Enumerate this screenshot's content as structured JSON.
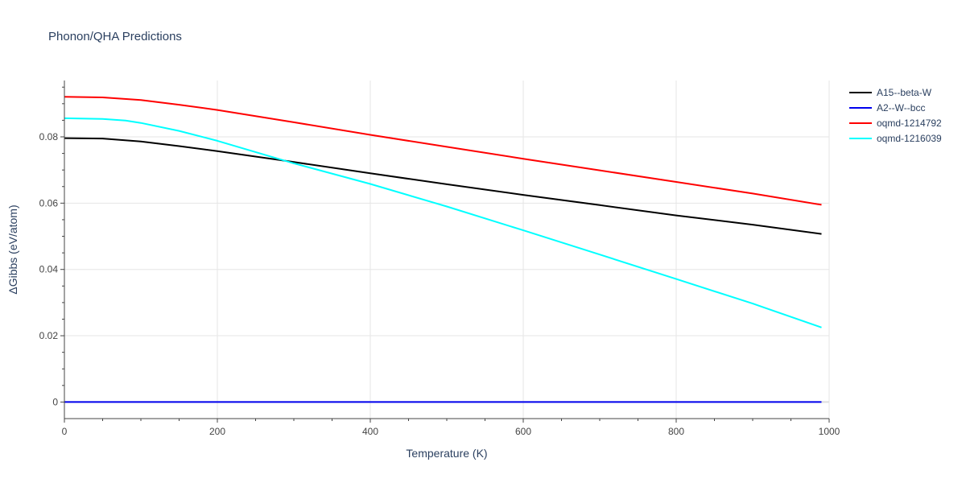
{
  "chart_data": {
    "type": "line",
    "title": "Phonon/QHA Predictions",
    "xlabel": "Temperature (K)",
    "ylabel": "ΔGibbs (eV/atom)",
    "xlim": [
      0,
      1000
    ],
    "ylim": [
      -0.005,
      0.097
    ],
    "xticks": [
      0,
      200,
      400,
      600,
      800,
      1000
    ],
    "xtick_labels": [
      "0",
      "200",
      "400",
      "600",
      "800",
      "1000"
    ],
    "yticks": [
      0,
      0.02,
      0.04,
      0.06,
      0.08
    ],
    "ytick_labels": [
      "0",
      "0.02",
      "0.04",
      "0.06",
      "0.08"
    ],
    "grid": true,
    "legend_position": "top-right",
    "series": [
      {
        "name": "A15--beta-W",
        "color": "#000000",
        "x": [
          0,
          50,
          100,
          150,
          200,
          300,
          400,
          500,
          600,
          700,
          800,
          900,
          990
        ],
        "y": [
          0.0796,
          0.0795,
          0.0786,
          0.0772,
          0.0757,
          0.0724,
          0.069,
          0.0657,
          0.0625,
          0.0594,
          0.0563,
          0.0535,
          0.0507
        ]
      },
      {
        "name": "A2--W--bcc",
        "color": "#0000ee",
        "x": [
          0,
          990
        ],
        "y": [
          0,
          0
        ]
      },
      {
        "name": "oqmd-1214792",
        "color": "#ff0000",
        "x": [
          0,
          50,
          100,
          150,
          200,
          300,
          400,
          500,
          600,
          700,
          800,
          900,
          990
        ],
        "y": [
          0.0921,
          0.0919,
          0.0911,
          0.0897,
          0.0881,
          0.0844,
          0.0806,
          0.077,
          0.0734,
          0.0699,
          0.0664,
          0.0629,
          0.0595
        ]
      },
      {
        "name": "oqmd-1216039",
        "color": "#00ffff",
        "x": [
          0,
          50,
          80,
          100,
          150,
          200,
          250,
          300,
          400,
          500,
          600,
          700,
          800,
          900,
          990
        ],
        "y": [
          0.0856,
          0.0854,
          0.0849,
          0.0842,
          0.0818,
          0.0788,
          0.0754,
          0.072,
          0.0658,
          0.059,
          0.0518,
          0.0445,
          0.0371,
          0.0297,
          0.0225
        ]
      }
    ]
  }
}
